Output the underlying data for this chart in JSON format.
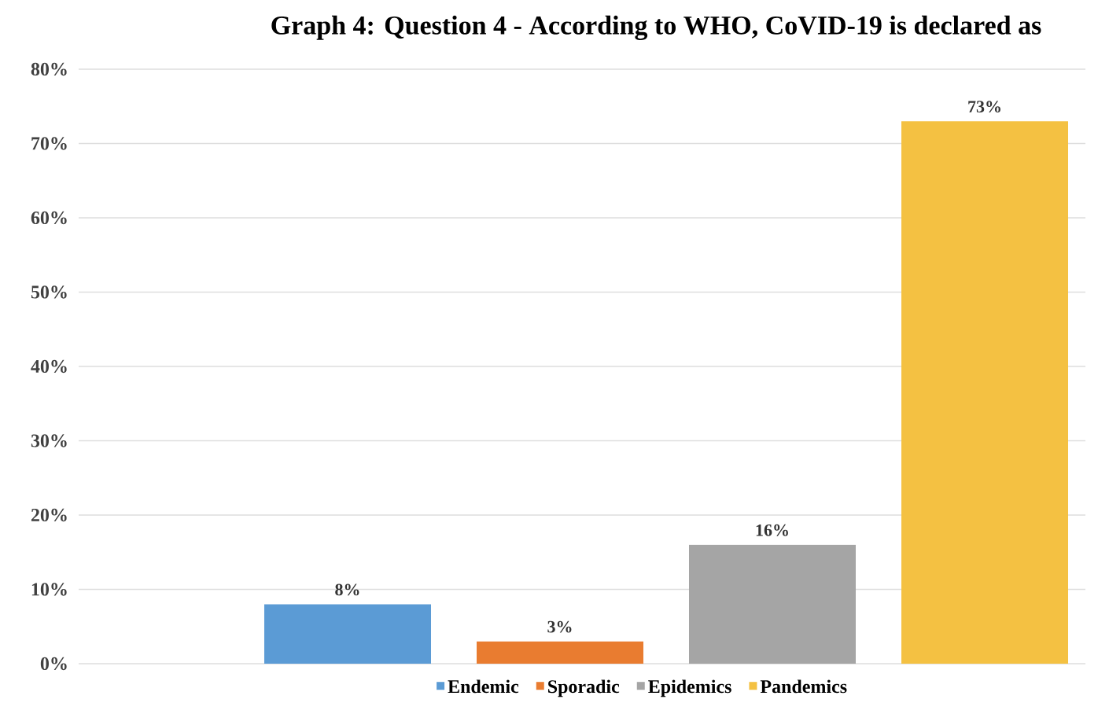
{
  "chart_data": {
    "type": "bar",
    "title": "Graph 4: Question 4 - According to WHO, CoVID-19 is declared as",
    "categories": [
      null
    ],
    "series": [
      {
        "name": "Endemic",
        "color": "#5b9bd5",
        "values": [
          8
        ],
        "value_labels": [
          "8%"
        ]
      },
      {
        "name": "Sporadic",
        "color": "#e97c30",
        "values": [
          3
        ],
        "value_labels": [
          "3%"
        ]
      },
      {
        "name": "Epidemics",
        "color": "#a5a5a5",
        "values": [
          16
        ],
        "value_labels": [
          "16%"
        ]
      },
      {
        "name": "Pandemics",
        "color": "#f4c142",
        "values": [
          73
        ],
        "value_labels": [
          "73%"
        ]
      }
    ],
    "ylim": [
      0,
      80
    ],
    "yticks": [
      {
        "value": 0,
        "label": "0%"
      },
      {
        "value": 10,
        "label": "10%"
      },
      {
        "value": 20,
        "label": "20%"
      },
      {
        "value": 30,
        "label": "30%"
      },
      {
        "value": 40,
        "label": "40%"
      },
      {
        "value": 50,
        "label": "50%"
      },
      {
        "value": 60,
        "label": "60%"
      },
      {
        "value": 70,
        "label": "70%"
      },
      {
        "value": 80,
        "label": "80%"
      }
    ],
    "grid": "y",
    "legend": "bottom",
    "tick_labels": "y"
  }
}
